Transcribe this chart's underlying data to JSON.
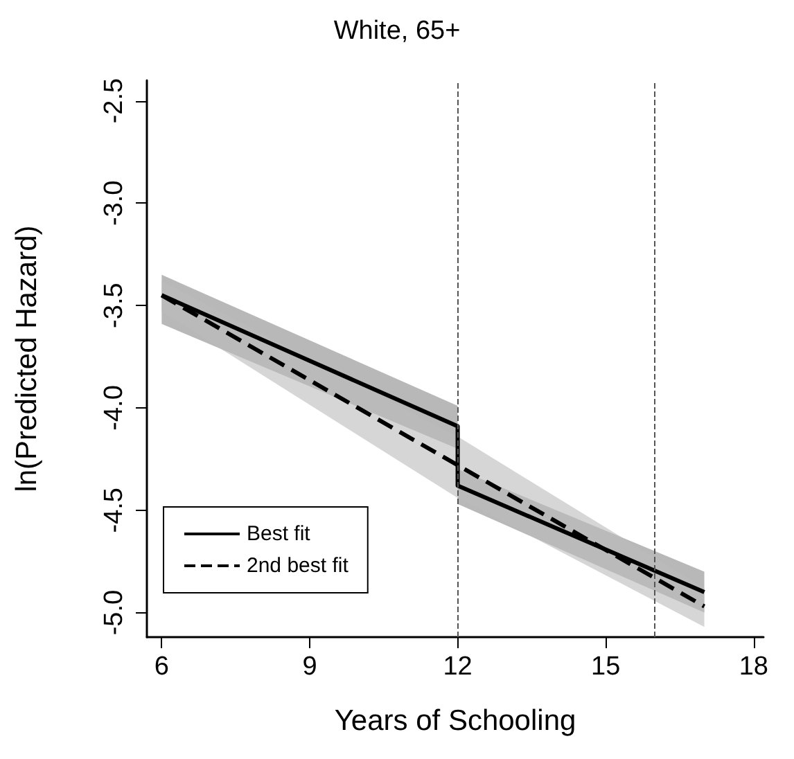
{
  "chart_data": {
    "type": "line",
    "title": "White, 65+",
    "xlabel": "Years of Schooling",
    "ylabel": "ln(Predicted Hazard)",
    "xlim": [
      5.7,
      18.2
    ],
    "ylim": [
      -5.12,
      -2.4
    ],
    "xticks": [
      6,
      9,
      12,
      15,
      18
    ],
    "yticks": [
      {
        "value": -5,
        "label": "-5.0"
      },
      -4.5,
      {
        "value": -4,
        "label": "-4.0"
      },
      -3.5,
      {
        "value": -3,
        "label": "-3.0"
      },
      -2.5
    ],
    "series": [
      {
        "name": "Best fit",
        "color": "#000000",
        "line_style": "solid",
        "x": [
          6,
          12,
          12,
          17
        ],
        "values": [
          -3.45,
          -4.09,
          -4.38,
          -4.9
        ],
        "lower": [
          -3.59,
          -4.2,
          -4.47,
          -5.0
        ],
        "upper": [
          -3.35,
          -3.99,
          -4.3,
          -4.8
        ]
      },
      {
        "name": "2nd best fit",
        "color": "#000000",
        "line_style": "dashed",
        "x": [
          6,
          12,
          17
        ],
        "values": [
          -3.45,
          -4.28,
          -4.97
        ],
        "lower": [
          -3.53,
          -4.44,
          -5.07
        ],
        "upper": [
          -3.38,
          -4.14,
          -4.88
        ]
      }
    ],
    "ref_lines": [
      {
        "axis": "x",
        "value": 12,
        "color": "#555555",
        "line_style": "dashed"
      },
      {
        "axis": "x",
        "value": 16,
        "color": "#555555",
        "line_style": "dashed"
      }
    ],
    "legend": "bottom left",
    "grid": false,
    "marker": "none"
  }
}
